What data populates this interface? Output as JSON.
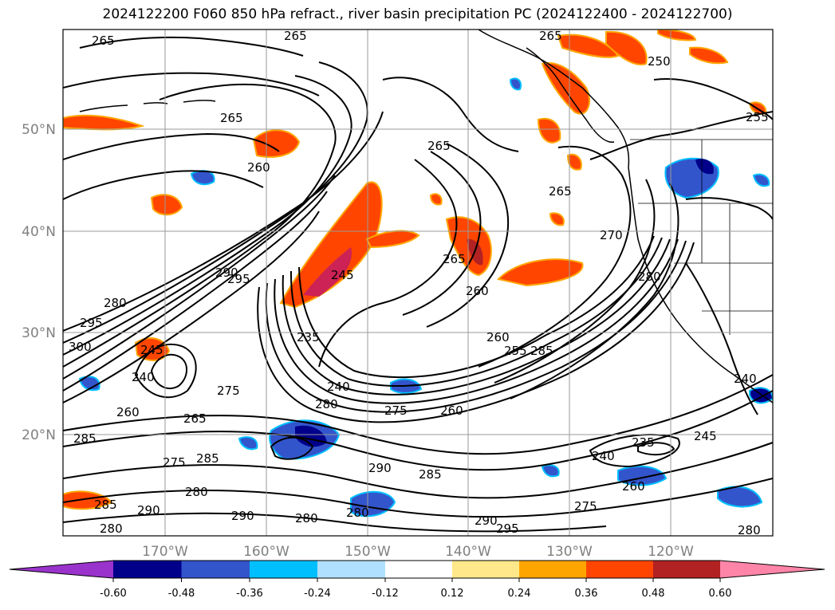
{
  "title": "2024122200 F060 850 hPa refract., river basin precipitation PC (2024122400 - 2024122700)",
  "map": {
    "lat_labels": [
      "50°N",
      "40°N",
      "30°N",
      "20°N"
    ],
    "lon_labels": [
      "170°W",
      "160°W",
      "150°W",
      "140°W",
      "130°W",
      "120°W"
    ],
    "contour_labels": [
      "265",
      "265",
      "265",
      "265",
      "260",
      "265",
      "250",
      "255",
      "265",
      "270",
      "265",
      "260",
      "260",
      "255",
      "285",
      "280",
      "290",
      "295",
      "280",
      "295",
      "300",
      "245",
      "240",
      "275",
      "260",
      "265",
      "285",
      "275",
      "285",
      "280",
      "290",
      "290",
      "280",
      "235",
      "240",
      "280",
      "275",
      "260",
      "290",
      "285",
      "280",
      "290",
      "295",
      "240",
      "235",
      "245",
      "275",
      "280",
      "240",
      "280",
      "285",
      "245",
      "260"
    ]
  },
  "colorbar": {
    "tick_labels": [
      "-0.60",
      "-0.48",
      "-0.36",
      "-0.24",
      "-0.12",
      "0.12",
      "0.24",
      "0.36",
      "0.48",
      "0.60"
    ],
    "colors": [
      "#9a33cc",
      "#00008b",
      "#3355cc",
      "#00bfff",
      "#b0e0ff",
      "#ffffff",
      "#ffe88a",
      "#ffa500",
      "#ff4500",
      "#b22222",
      "#ff85a8"
    ]
  }
}
